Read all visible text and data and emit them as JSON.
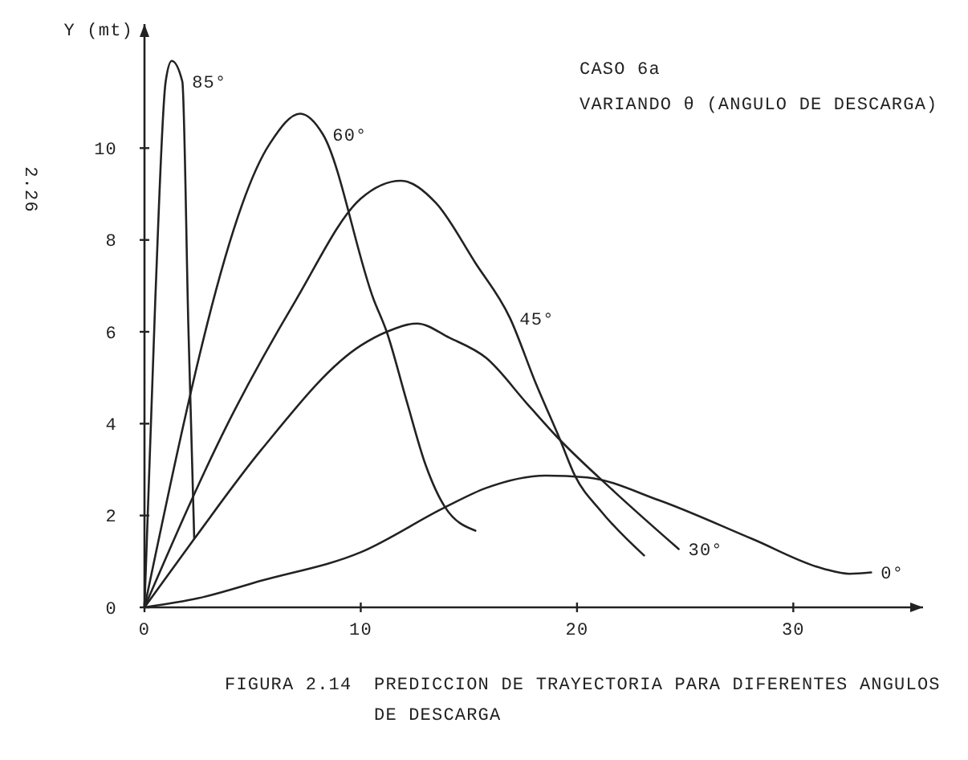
{
  "chart_data": {
    "type": "line",
    "title": "CASO 6a",
    "subtitle": "VARIANDO θ (ANGULO DE DESCARGA)",
    "ylabel": "Y (mt)",
    "annotations": [
      "FIGURA 2.14  PREDICCION DE TRAYECTORIA PARA DIFERENTES ANGULOS DE DESCARGA",
      "2.26"
    ],
    "xlim": [
      0,
      36
    ],
    "xticks": [
      0,
      10,
      20,
      30
    ],
    "ylim": [
      0,
      12.7
    ],
    "yticks": [
      0,
      2,
      4,
      6,
      8,
      10
    ],
    "series": [
      {
        "name": "85°",
        "color": "#222222",
        "x": [
          0,
          0.5,
          0.98,
          1.26,
          1.75,
          2.03,
          2.3
        ],
        "values": [
          0,
          6.7,
          11.45,
          11.9,
          11.45,
          6.1,
          1.5
        ]
      },
      {
        "name": "60°",
        "color": "#222222",
        "x": [
          0,
          5.8,
          7.2,
          8.25,
          10.6,
          11.2,
          12.1,
          13.0,
          13.9,
          15.3
        ],
        "values": [
          0,
          10.1,
          10.75,
          10.3,
          6.7,
          6.0,
          4.53,
          3.1,
          2.18,
          1.67
        ]
      },
      {
        "name": "45°",
        "color": "#222222",
        "x": [
          0,
          3.85,
          7.0,
          10.0,
          11.86,
          13.45,
          15.3,
          16.9,
          18.1,
          19.2,
          19.9,
          21.1,
          23.1
        ],
        "values": [
          0,
          4.0,
          6.69,
          8.9,
          9.29,
          8.82,
          7.5,
          6.3,
          4.87,
          3.67,
          2.87,
          2.1,
          1.13
        ]
      },
      {
        "name": "30°",
        "color": "#222222",
        "x": [
          0,
          2.3,
          5.4,
          10.0,
          11.2,
          12.6,
          14.1,
          15.8,
          17.7,
          19.1,
          21.7,
          24.7
        ],
        "values": [
          0,
          1.49,
          3.43,
          5.7,
          6.0,
          6.18,
          5.87,
          5.43,
          4.43,
          3.7,
          2.53,
          1.27
        ]
      },
      {
        "name": "0°",
        "color": "#222222",
        "x": [
          0,
          2.5,
          5.4,
          10.0,
          13.9,
          15.8,
          18.55,
          20.45,
          23.8,
          28.1,
          31.4,
          32.6,
          33.6
        ],
        "values": [
          0,
          0.2,
          0.58,
          1.2,
          2.18,
          2.6,
          2.87,
          2.83,
          2.33,
          1.49,
          0.84,
          0.73,
          0.76
        ]
      }
    ]
  }
}
